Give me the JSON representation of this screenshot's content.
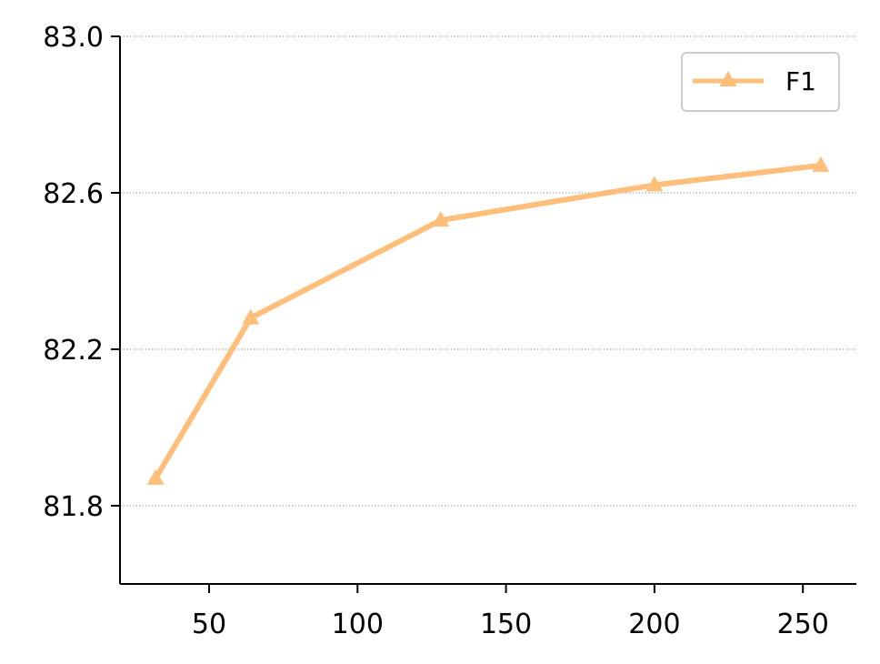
{
  "chart_data": {
    "type": "line",
    "title": "",
    "xlabel": "",
    "ylabel": "",
    "x": [
      32,
      64,
      128,
      200,
      256
    ],
    "series": [
      {
        "name": "F1",
        "values": [
          81.87,
          82.28,
          82.53,
          82.62,
          82.67
        ],
        "color": "#ffbe7a",
        "marker": "triangle"
      }
    ],
    "xlim": [
      20,
      268
    ],
    "ylim": [
      81.6,
      83.0
    ],
    "xticks": [
      50,
      100,
      150,
      200,
      250
    ],
    "xtick_labels": [
      "50",
      "100",
      "150",
      "200",
      "250"
    ],
    "yticks": [
      81.8,
      82.2,
      82.6,
      83.0
    ],
    "ytick_labels": [
      "81.8",
      "82.2",
      "82.6",
      "83.0"
    ],
    "grid": "horizontal dotted",
    "legend_position": "top-right"
  }
}
